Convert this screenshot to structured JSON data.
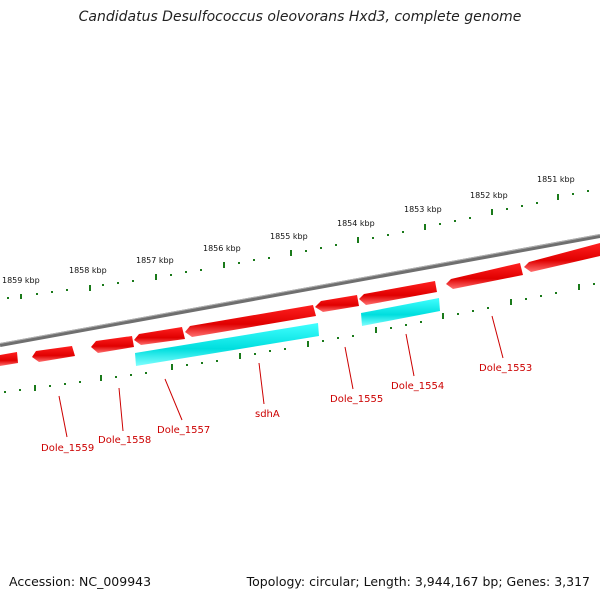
{
  "title": "Candidatus Desulfococcus oleovorans Hxd3, complete genome",
  "footer": {
    "accession": "Accession: NC_009943",
    "summary": "Topology: circular; Length: 3,944,167 bp; Genes: 3,317"
  },
  "colors": {
    "forward_gene": "#ff0000",
    "highlight_gene": "#00e5ee",
    "backbone": "#808080",
    "ticks": "#1a7a1a",
    "labels": "#cc0000"
  },
  "scale_labels": [
    "1859 kbp",
    "1858 kbp",
    "1857 kbp",
    "1856 kbp",
    "1855 kbp",
    "1854 kbp",
    "1853 kbp",
    "1852 kbp",
    "1851 kbp"
  ],
  "genes": [
    {
      "name": "Dole_1559",
      "label": "Dole_1559"
    },
    {
      "name": "Dole_1558",
      "label": "Dole_1558"
    },
    {
      "name": "Dole_1557",
      "label": "Dole_1557"
    },
    {
      "name": "sdhA",
      "label": "sdhA"
    },
    {
      "name": "Dole_1555",
      "label": "Dole_1555"
    },
    {
      "name": "Dole_1554",
      "label": "Dole_1554"
    },
    {
      "name": "Dole_1553",
      "label": "Dole_1553"
    }
  ]
}
